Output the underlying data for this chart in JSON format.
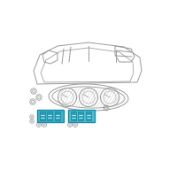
{
  "bg_color": "#ffffff",
  "line_color": "#999999",
  "highlight_color": "#3ab5c8",
  "highlight_color2": "#4ac0d0",
  "button_color": "#2a9db8",
  "button_edge": "#1a7a90",
  "panel_edge": "#1a8aaa"
}
